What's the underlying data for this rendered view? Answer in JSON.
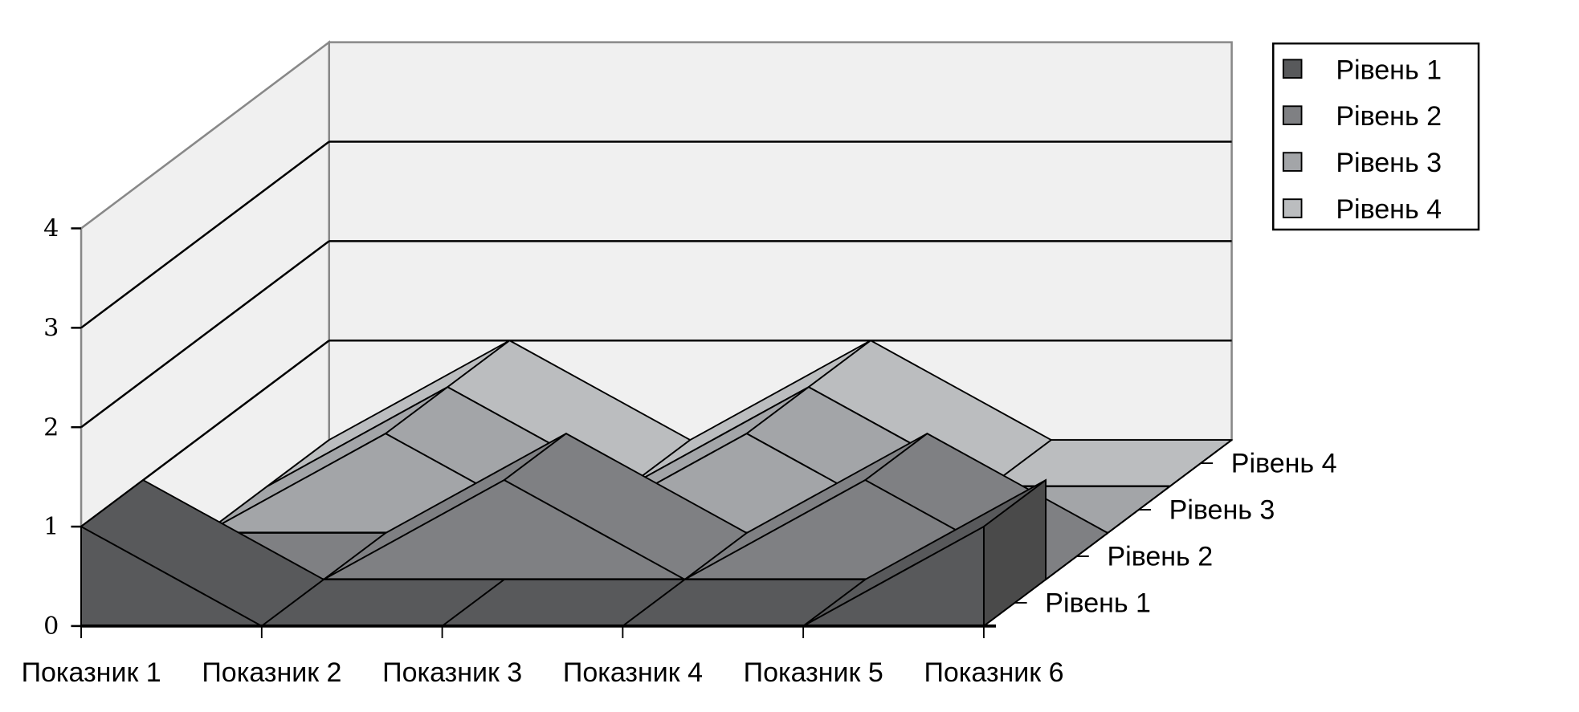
{
  "chart_data": {
    "type": "area-3d",
    "categories": [
      "Показник 1",
      "Показник 2",
      "Показник 3",
      "Показник 4",
      "Показник 5",
      "Показник 6"
    ],
    "series": [
      {
        "name": "Рівень 1",
        "values": [
          1,
          0,
          0,
          0,
          0,
          1
        ],
        "color": "#58595b"
      },
      {
        "name": "Рівень 2",
        "values": [
          0,
          0,
          1,
          0,
          1,
          0
        ],
        "color": "#7f8083"
      },
      {
        "name": "Рівень 3",
        "values": [
          0,
          1,
          0,
          1,
          0,
          0
        ],
        "color": "#a3a5a8"
      },
      {
        "name": "Рівень 4",
        "values": [
          0,
          1,
          0,
          1,
          0,
          0
        ],
        "color": "#bbbdbf"
      }
    ],
    "yticks": [
      "0",
      "1",
      "2",
      "3",
      "4"
    ],
    "ylim": [
      0,
      4
    ],
    "grid": true,
    "legend": "top-right",
    "wall_color": "#f0f0f0"
  }
}
